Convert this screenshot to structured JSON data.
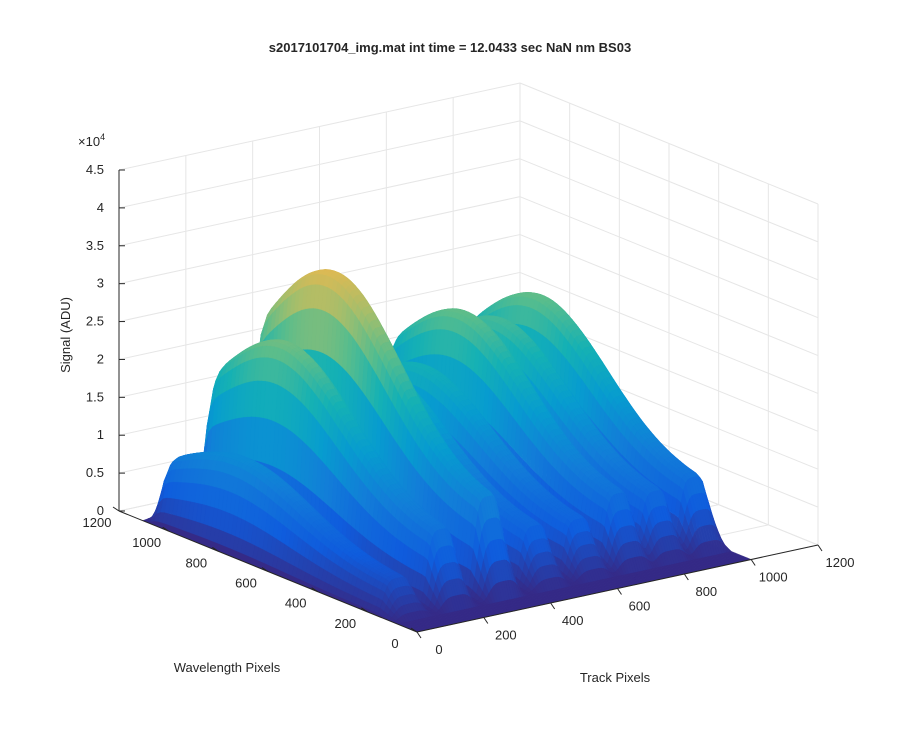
{
  "chart_data": {
    "type": "surface",
    "title": "s2017101704_img.mat int time = 12.0433 sec  NaN nm BS03",
    "xlabel": "Track Pixels",
    "ylabel": "Wavelength Pixels",
    "zlabel": "Signal (ADU)",
    "z_exponent_label": "×10",
    "z_exponent_power": "4",
    "xlim": [
      0,
      1200
    ],
    "ylim": [
      0,
      1200
    ],
    "zlim": [
      0,
      45000
    ],
    "x_ticks": [
      "0",
      "200",
      "400",
      "600",
      "800",
      "1000",
      "1200"
    ],
    "y_ticks": [
      "0",
      "200",
      "400",
      "600",
      "800",
      "1000",
      "1200"
    ],
    "z_ticks": [
      "0",
      "0.5",
      "1",
      "1.5",
      "2",
      "2.5",
      "3",
      "3.5",
      "4",
      "4.5"
    ],
    "grid": true,
    "colormap": "parula",
    "track_peaks": [
      {
        "track_center": 60,
        "peak_signal": 12000
      },
      {
        "track_center": 190,
        "peak_signal": 26000
      },
      {
        "track_center": 330,
        "peak_signal": 34000
      },
      {
        "track_center": 470,
        "peak_signal": 20000
      },
      {
        "track_center": 600,
        "peak_signal": 19000
      },
      {
        "track_center": 720,
        "peak_signal": 25000
      },
      {
        "track_center": 830,
        "peak_signal": 23000
      },
      {
        "track_center": 945,
        "peak_signal": 25000
      }
    ]
  }
}
